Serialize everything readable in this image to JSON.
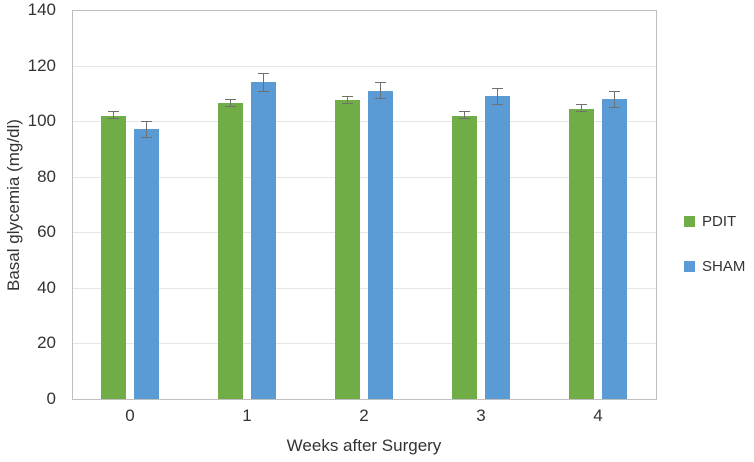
{
  "chart_data": {
    "type": "bar",
    "title": "",
    "xlabel": "Weeks after Surgery",
    "ylabel": "Basal glycemia (mg/dl)",
    "categories": [
      "0",
      "1",
      "2",
      "3",
      "4"
    ],
    "series": [
      {
        "name": "PDIT",
        "color": "#70AD47",
        "values": [
          102,
          106.5,
          107.5,
          102,
          104.5
        ],
        "errors": [
          1.5,
          1.5,
          1.5,
          1.5,
          1.5
        ]
      },
      {
        "name": "SHAM",
        "color": "#5B9BD5",
        "values": [
          97,
          114,
          111,
          109,
          108
        ],
        "errors": [
          3,
          3.5,
          3,
          3,
          3
        ]
      }
    ],
    "ylim": [
      0,
      140
    ],
    "ytick_step": 20,
    "yticks": [
      0,
      20,
      40,
      60,
      80,
      100,
      120,
      140
    ],
    "grid": true,
    "legend_position": "right",
    "error_bars": true,
    "colors": {
      "frame": "#BFBFBF",
      "gridline": "#E6E6E6",
      "error_bar": "#707070",
      "text": "#333333",
      "background": "#FFFFFF"
    }
  }
}
